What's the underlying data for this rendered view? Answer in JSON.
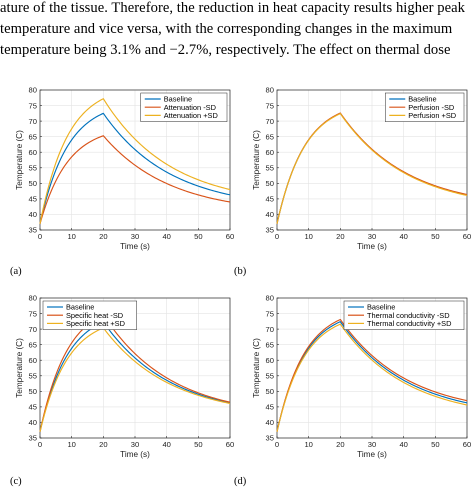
{
  "text_lines": [
    "ature of the tissue. Therefore, the reduction in heat capacity results higher peak",
    "temperature and vice versa, with the corresponding changes in the maximum",
    "temperature being 3.1% and −2.7%, respectively. The effect on thermal dose"
  ],
  "colors": {
    "baseline": "#0072BD",
    "minus_sd": "#D95319",
    "plus_sd": "#EDB120"
  },
  "chart_data": [
    {
      "id": "a",
      "type": "line",
      "caption": "(a)",
      "xlabel": "Time (s)",
      "ylabel": "Temperature (C)",
      "xlim": [
        0,
        60
      ],
      "ylim": [
        35,
        80
      ],
      "xticks": [
        0,
        10,
        20,
        30,
        40,
        50,
        60
      ],
      "yticks": [
        35,
        40,
        45,
        50,
        55,
        60,
        65,
        70,
        75,
        80
      ],
      "grid": true,
      "legend_position": "top-right",
      "series": [
        {
          "name": "Baseline",
          "color": "#0072BD",
          "x": [
            0,
            20,
            60
          ],
          "y": [
            37,
            72.5,
            46.3
          ]
        },
        {
          "name": "Attenuation -SD",
          "color": "#D95319",
          "x": [
            0,
            20,
            60
          ],
          "y": [
            37,
            65.3,
            44
          ]
        },
        {
          "name": "Attenuation +SD",
          "color": "#EDB120",
          "x": [
            0,
            20,
            60
          ],
          "y": [
            37,
            77.2,
            48
          ]
        }
      ]
    },
    {
      "id": "b",
      "type": "line",
      "caption": "(b)",
      "xlabel": "Time (s)",
      "ylabel": "Temperature (C)",
      "xlim": [
        0,
        60
      ],
      "ylim": [
        35,
        80
      ],
      "xticks": [
        0,
        10,
        20,
        30,
        40,
        50,
        60
      ],
      "yticks": [
        35,
        40,
        45,
        50,
        55,
        60,
        65,
        70,
        75,
        80
      ],
      "grid": true,
      "legend_position": "top-right",
      "series": [
        {
          "name": "Baseline",
          "color": "#0072BD",
          "x": [
            0,
            20,
            60
          ],
          "y": [
            37,
            72.5,
            46.3
          ]
        },
        {
          "name": "Perfusion -SD",
          "color": "#D95319",
          "x": [
            0,
            20,
            60
          ],
          "y": [
            37,
            72.6,
            46.4
          ]
        },
        {
          "name": "Perfusion +SD",
          "color": "#EDB120",
          "x": [
            0,
            20,
            60
          ],
          "y": [
            37,
            72.4,
            46.1
          ]
        }
      ]
    },
    {
      "id": "c",
      "type": "line",
      "caption": "(c)",
      "xlabel": "Time (s)",
      "ylabel": "Temperature (C)",
      "xlim": [
        0,
        60
      ],
      "ylim": [
        35,
        80
      ],
      "xticks": [
        0,
        10,
        20,
        30,
        40,
        50,
        60
      ],
      "yticks": [
        35,
        40,
        45,
        50,
        55,
        60,
        65,
        70,
        75,
        80
      ],
      "grid": true,
      "legend_position": "top-left",
      "series": [
        {
          "name": "Baseline",
          "color": "#0072BD",
          "x": [
            0,
            20,
            60
          ],
          "y": [
            37,
            72.3,
            46.3
          ]
        },
        {
          "name": "Specific heat -SD",
          "color": "#D95319",
          "x": [
            0,
            20,
            60
          ],
          "y": [
            37,
            74.6,
            46.5
          ]
        },
        {
          "name": "Specific heat +SD",
          "color": "#EDB120",
          "x": [
            0,
            20,
            60
          ],
          "y": [
            37,
            70.4,
            46.1
          ]
        }
      ]
    },
    {
      "id": "d",
      "type": "line",
      "caption": "(d)",
      "xlabel": "Time (s)",
      "ylabel": "Temperature (C)",
      "xlim": [
        0,
        60
      ],
      "ylim": [
        35,
        80
      ],
      "xticks": [
        0,
        10,
        20,
        30,
        40,
        50,
        60
      ],
      "yticks": [
        35,
        40,
        45,
        50,
        55,
        60,
        65,
        70,
        75,
        80
      ],
      "grid": true,
      "legend_position": "top-right",
      "series": [
        {
          "name": "Baseline",
          "color": "#0072BD",
          "x": [
            0,
            20,
            60
          ],
          "y": [
            37,
            72.4,
            46.3
          ]
        },
        {
          "name": "Thermal conductivity -SD",
          "color": "#D95319",
          "x": [
            0,
            20,
            60
          ],
          "y": [
            37,
            73.1,
            47
          ]
        },
        {
          "name": "Thermal conductivity +SD",
          "color": "#EDB120",
          "x": [
            0,
            20,
            60
          ],
          "y": [
            37,
            71.6,
            45.6
          ]
        }
      ]
    }
  ]
}
